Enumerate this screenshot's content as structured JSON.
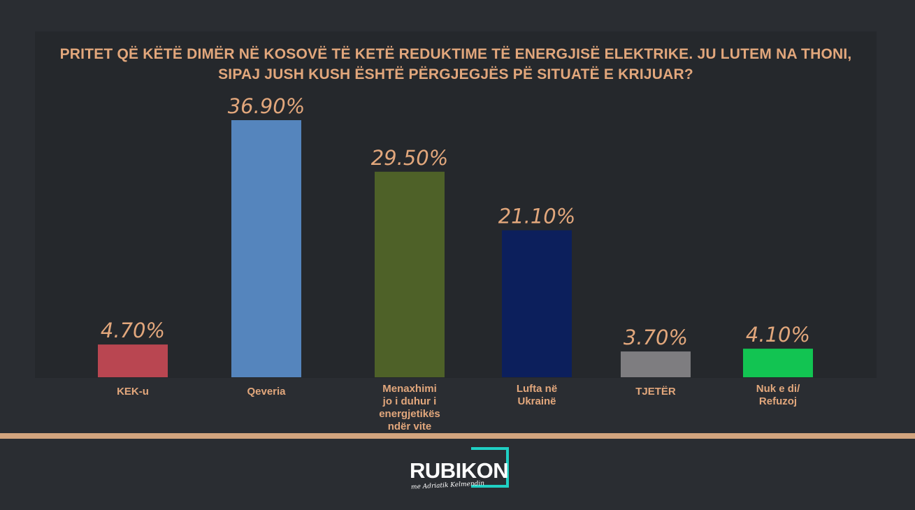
{
  "chart_data": {
    "type": "bar",
    "title_lines": [
      "PRITET QË KËTË DIMËR NË KOSOVË TË KETË REDUKTIME TË ENERGJISË ELEKTRIKE. JU LUTEM NA THONI,",
      "SIPAJ JUSH KUSH ËSHTË PËRGJEGJËS PË SITUATË E KRIJUAR?"
    ],
    "categories": [
      [
        "KEK-u"
      ],
      [
        "Qeveria"
      ],
      [
        "Menaxhimi",
        "jo i duhur i",
        "energjetikës",
        "ndër vite"
      ],
      [
        "Lufta në",
        "Ukrainë"
      ],
      [
        "TJETËR"
      ],
      [
        "Nuk e di/",
        "Refuzoj"
      ]
    ],
    "values": [
      4.7,
      36.9,
      29.5,
      21.1,
      3.7,
      4.1
    ],
    "value_labels": [
      "4.70%",
      "36.90%",
      "29.50%",
      "21.10%",
      "3.70%",
      "4.10%"
    ],
    "colors": [
      "#b94651",
      "#5585bd",
      "#4e6128",
      "#0c1f5c",
      "#7e7d80",
      "#12c452"
    ],
    "ylim": [
      0,
      36.9
    ],
    "grid": false,
    "legend": "none"
  },
  "logo": {
    "text": "RUBIKON",
    "tagline": "me Adriatik Kelmendin",
    "accent": "#1fd0c4"
  },
  "colors": {
    "background": "#2a2d32",
    "panel": "#25282c",
    "text": "#e2a77c",
    "divider": "#d2a47e"
  }
}
